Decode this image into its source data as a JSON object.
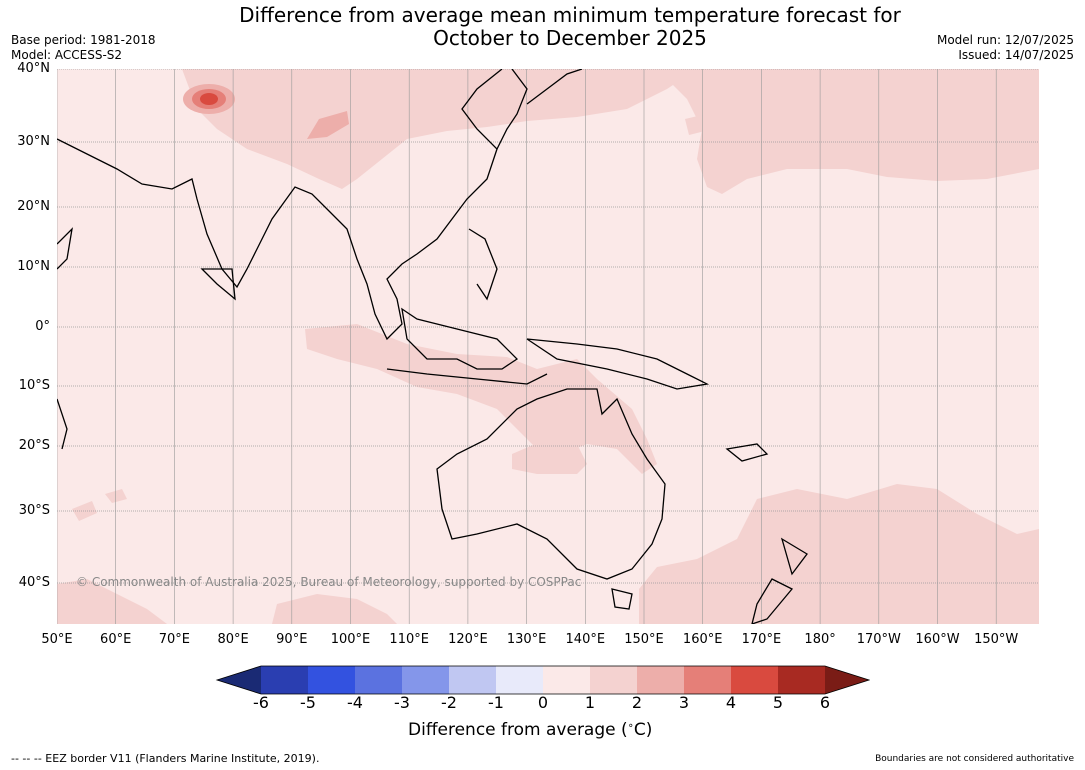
{
  "title_line1": "Difference from average mean minimum temperature forecast for",
  "title_line2": "October to December 2025",
  "base_period": "Base period: 1981-2018",
  "model": "Model: ACCESS-S2",
  "model_run": "Model run: 12/07/2025",
  "issued": "Issued: 14/07/2025",
  "copyright": "© Commonwealth of Australia 2025, Bureau of Meteorology, supported by COSPPac",
  "lat_labels": [
    "40°N",
    "30°N",
    "20°N",
    "10°N",
    "0°",
    "10°S",
    "20°S",
    "30°S",
    "40°S"
  ],
  "lon_labels": [
    "50°E",
    "60°E",
    "70°E",
    "80°E",
    "90°E",
    "100°E",
    "110°E",
    "120°E",
    "130°E",
    "140°E",
    "150°E",
    "160°E",
    "170°E",
    "180°",
    "170°W",
    "160°W",
    "150°W"
  ],
  "colorbar": {
    "ticks": [
      "-6",
      "-5",
      "-4",
      "-3",
      "-2",
      "-1",
      "0",
      "1",
      "2",
      "3",
      "4",
      "5",
      "6"
    ],
    "colors": [
      "#1a2a74",
      "#2a3eb1",
      "#3352e0",
      "#5b72e0",
      "#8496ea",
      "#c0c7f2",
      "#e8eafa",
      "#fbe9e8",
      "#f4d2d0",
      "#edaeaa",
      "#e57f78",
      "#d94a3f",
      "#a82a22",
      "#7a1c16"
    ],
    "label": "Difference from average ($^{\\circ}$C)"
  },
  "footer_left": "--  --  -- EEZ border V11 (Flanders Marine Institute, 2019).",
  "footer_right": "Boundaries are not considered authoritative"
}
